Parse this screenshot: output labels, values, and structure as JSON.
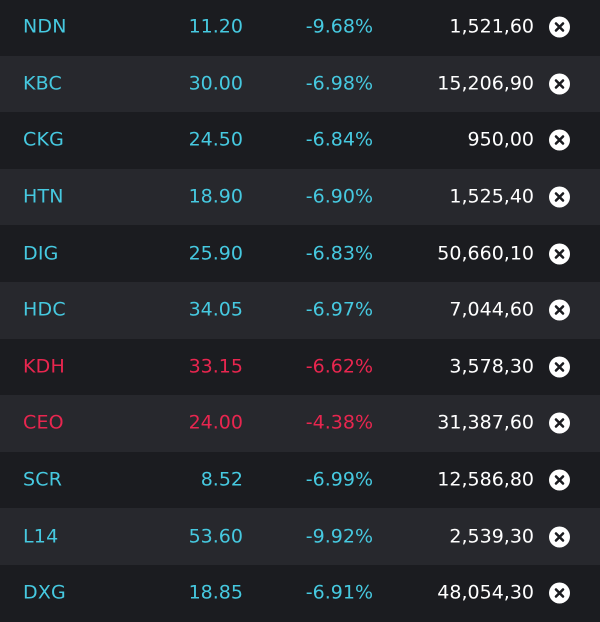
{
  "colors": {
    "up_teal": "#46c9e0",
    "down_red": "#e8264f",
    "value_white": "#ffffff",
    "row_dark": "#1b1c20",
    "row_light": "#27282d"
  },
  "rows": [
    {
      "symbol": "NDN",
      "price": "11.20",
      "change": "-9.68%",
      "volume": "1,521,60",
      "color": "teal"
    },
    {
      "symbol": "KBC",
      "price": "30.00",
      "change": "-6.98%",
      "volume": "15,206,90",
      "color": "teal"
    },
    {
      "symbol": "CKG",
      "price": "24.50",
      "change": "-6.84%",
      "volume": "950,00",
      "color": "teal"
    },
    {
      "symbol": "HTN",
      "price": "18.90",
      "change": "-6.90%",
      "volume": "1,525,40",
      "color": "teal"
    },
    {
      "symbol": "DIG",
      "price": "25.90",
      "change": "-6.83%",
      "volume": "50,660,10",
      "color": "teal"
    },
    {
      "symbol": "HDC",
      "price": "34.05",
      "change": "-6.97%",
      "volume": "7,044,60",
      "color": "teal"
    },
    {
      "symbol": "KDH",
      "price": "33.15",
      "change": "-6.62%",
      "volume": "3,578,30",
      "color": "red"
    },
    {
      "symbol": "CEO",
      "price": "24.00",
      "change": "-4.38%",
      "volume": "31,387,60",
      "color": "red"
    },
    {
      "symbol": "SCR",
      "price": "8.52",
      "change": "-6.99%",
      "volume": "12,586,80",
      "color": "teal"
    },
    {
      "symbol": "L14",
      "price": "53.60",
      "change": "-9.92%",
      "volume": "2,539,30",
      "color": "teal"
    },
    {
      "symbol": "DXG",
      "price": "18.85",
      "change": "-6.91%",
      "volume": "48,054,30",
      "color": "teal"
    }
  ],
  "icons": {
    "remove": "close-circle-icon"
  }
}
